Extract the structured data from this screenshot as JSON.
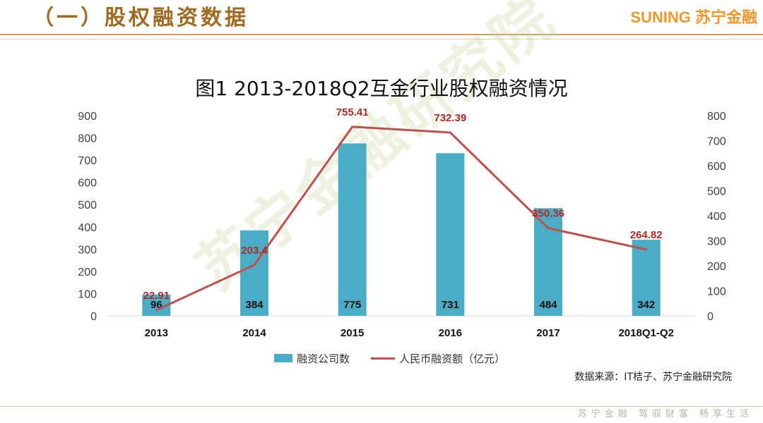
{
  "header": {
    "section_title": "（一）股权融资数据",
    "brand": "SUNING 苏宁金融"
  },
  "watermark": "苏宁金融研究院",
  "footer": {
    "slogan": "苏宁金融 驾驭财富 畅享生活"
  },
  "source_note": "数据来源：IT桔子、苏宁金融研究院",
  "colors": {
    "bar": "#4bacc6",
    "line": "#c0504d",
    "header_gold": "#a06a20",
    "brand_orange": "#f0982c"
  },
  "chart_data": {
    "type": "bar+line",
    "title": "图1  2013-2018Q2互金行业股权融资情况",
    "categories": [
      "2013",
      "2014",
      "2015",
      "2016",
      "2017",
      "2018Q1-Q2"
    ],
    "series": [
      {
        "name": "融资公司数",
        "type": "bar",
        "axis": "left",
        "values": [
          96,
          384,
          775,
          731,
          484,
          342
        ]
      },
      {
        "name": "人民币融资额（亿元）",
        "type": "line",
        "axis": "right",
        "values": [
          22.91,
          203.4,
          755.41,
          732.39,
          350.36,
          264.82
        ]
      }
    ],
    "y_left": {
      "min": 0,
      "max": 900,
      "ticks": [
        0,
        100,
        200,
        300,
        400,
        500,
        600,
        700,
        800,
        900
      ]
    },
    "y_right": {
      "min": 0,
      "max": 800,
      "ticks": [
        0,
        100,
        200,
        300,
        400,
        500,
        600,
        700,
        800
      ]
    },
    "bar_labels": [
      "96",
      "384",
      "775",
      "731",
      "484",
      "342"
    ],
    "line_labels": [
      "22.91",
      "203.4",
      "755.41",
      "732.39",
      "350.36",
      "264.82"
    ],
    "legend": "bottom"
  }
}
